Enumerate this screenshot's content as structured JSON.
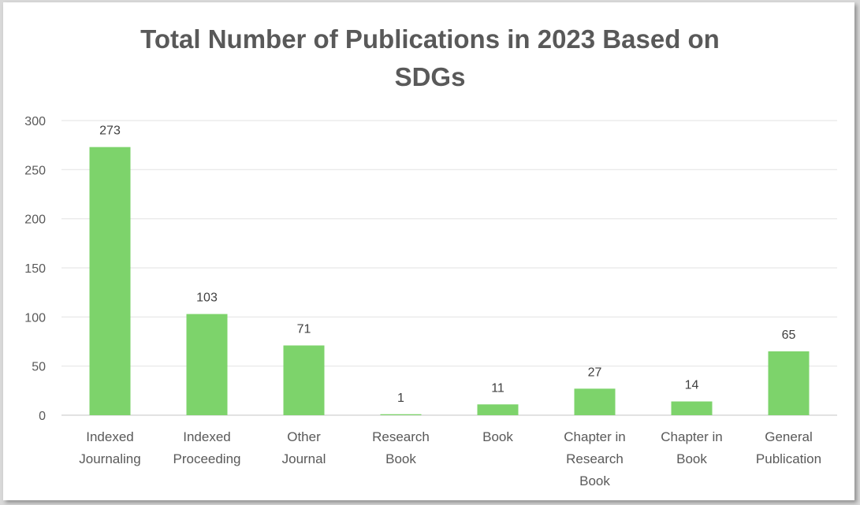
{
  "chart_data": {
    "type": "bar",
    "title_lines": [
      "Total Number of Publications in 2023 Based on",
      "SDGs"
    ],
    "categories": [
      [
        "Indexed",
        "Journaling"
      ],
      [
        "Indexed",
        "Proceeding"
      ],
      [
        "Other",
        "Journal"
      ],
      [
        "Research",
        "Book"
      ],
      [
        "Book"
      ],
      [
        "Chapter in",
        "Research",
        "Book"
      ],
      [
        "Chapter in",
        "Book"
      ],
      [
        "General",
        "Publication"
      ]
    ],
    "values": [
      273,
      103,
      71,
      1,
      11,
      27,
      14,
      65
    ],
    "data_labels": [
      "273",
      "103",
      "71",
      "1",
      "11",
      "27",
      "14",
      "65"
    ],
    "ylim": [
      0,
      300
    ],
    "yticks": [
      "0",
      "50",
      "100",
      "150",
      "200",
      "250",
      "300"
    ],
    "xlabel": "",
    "ylabel": "",
    "grid": true,
    "legend": "none",
    "bar_color": "#7dd36b",
    "grid_color": "#e6e6e6",
    "text_color": "#595959"
  }
}
